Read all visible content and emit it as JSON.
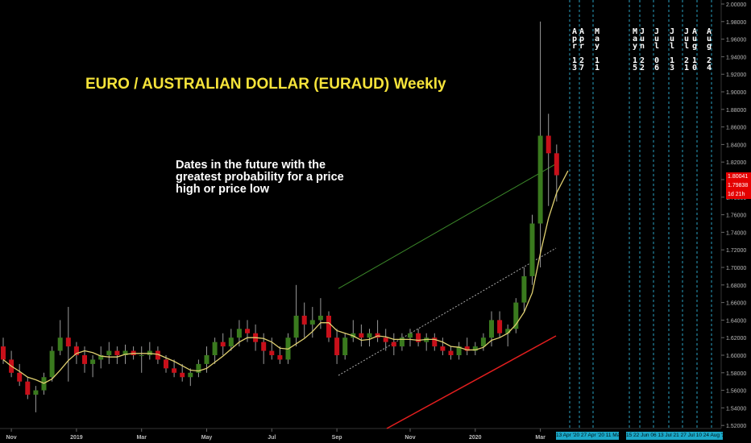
{
  "chart_data": {
    "type": "candlestick",
    "title": "EURO / AUSTRALIAN DOLLAR (EURAUD) Weekly",
    "ylim": [
      1.51,
      2.0
    ],
    "y_ticks": [
      "1.52000",
      "1.54000",
      "1.56000",
      "1.58000",
      "1.60000",
      "1.62000",
      "1.64000",
      "1.66000",
      "1.68000",
      "1.70000",
      "1.72000",
      "1.74000",
      "1.76000",
      "1.78000",
      "1.80000",
      "1.82000",
      "1.84000",
      "1.86000",
      "1.88000",
      "1.90000",
      "1.92000",
      "1.94000",
      "1.96000",
      "1.98000",
      "2.00000"
    ],
    "x_ticks": [
      {
        "label": "Nov",
        "week": 1
      },
      {
        "label": "2019",
        "week": 9
      },
      {
        "label": "Mar",
        "week": 17
      },
      {
        "label": "May",
        "week": 25
      },
      {
        "label": "Jul",
        "week": 33
      },
      {
        "label": "Sep",
        "week": 41
      },
      {
        "label": "Nov",
        "week": 50
      },
      {
        "label": "2020",
        "week": 58
      },
      {
        "label": "Mar",
        "week": 66
      }
    ],
    "candles": [
      [
        1.61,
        1.62,
        1.59,
        1.595
      ],
      [
        1.595,
        1.605,
        1.575,
        1.58
      ],
      [
        1.58,
        1.59,
        1.565,
        1.57
      ],
      [
        1.57,
        1.575,
        1.55,
        1.555
      ],
      [
        1.555,
        1.565,
        1.535,
        1.56
      ],
      [
        1.56,
        1.58,
        1.555,
        1.575
      ],
      [
        1.575,
        1.61,
        1.57,
        1.605
      ],
      [
        1.605,
        1.64,
        1.6,
        1.62
      ],
      [
        1.62,
        1.655,
        1.57,
        1.61
      ],
      [
        1.61,
        1.615,
        1.59,
        1.6
      ],
      [
        1.6,
        1.61,
        1.58,
        1.59
      ],
      [
        1.59,
        1.6,
        1.575,
        1.595
      ],
      [
        1.595,
        1.61,
        1.585,
        1.6
      ],
      [
        1.6,
        1.615,
        1.59,
        1.605
      ],
      [
        1.605,
        1.61,
        1.59,
        1.6
      ],
      [
        1.6,
        1.612,
        1.59,
        1.605
      ],
      [
        1.605,
        1.61,
        1.595,
        1.6
      ],
      [
        1.6,
        1.61,
        1.58,
        1.6
      ],
      [
        1.6,
        1.615,
        1.595,
        1.605
      ],
      [
        1.605,
        1.61,
        1.59,
        1.595
      ],
      [
        1.595,
        1.6,
        1.58,
        1.585
      ],
      [
        1.585,
        1.595,
        1.575,
        1.58
      ],
      [
        1.58,
        1.59,
        1.57,
        1.575
      ],
      [
        1.575,
        1.585,
        1.565,
        1.58
      ],
      [
        1.58,
        1.595,
        1.575,
        1.59
      ],
      [
        1.59,
        1.61,
        1.58,
        1.6
      ],
      [
        1.6,
        1.62,
        1.59,
        1.615
      ],
      [
        1.615,
        1.625,
        1.6,
        1.61
      ],
      [
        1.61,
        1.63,
        1.605,
        1.62
      ],
      [
        1.62,
        1.64,
        1.61,
        1.63
      ],
      [
        1.63,
        1.64,
        1.615,
        1.625
      ],
      [
        1.625,
        1.635,
        1.605,
        1.615
      ],
      [
        1.615,
        1.625,
        1.59,
        1.605
      ],
      [
        1.605,
        1.62,
        1.595,
        1.6
      ],
      [
        1.6,
        1.61,
        1.59,
        1.595
      ],
      [
        1.595,
        1.625,
        1.59,
        1.62
      ],
      [
        1.62,
        1.68,
        1.61,
        1.645
      ],
      [
        1.645,
        1.66,
        1.62,
        1.635
      ],
      [
        1.635,
        1.655,
        1.62,
        1.64
      ],
      [
        1.64,
        1.665,
        1.63,
        1.645
      ],
      [
        1.645,
        1.65,
        1.615,
        1.62
      ],
      [
        1.62,
        1.63,
        1.59,
        1.6
      ],
      [
        1.6,
        1.625,
        1.595,
        1.62
      ],
      [
        1.62,
        1.64,
        1.615,
        1.625
      ],
      [
        1.625,
        1.635,
        1.61,
        1.62
      ],
      [
        1.62,
        1.63,
        1.61,
        1.625
      ],
      [
        1.625,
        1.64,
        1.615,
        1.62
      ],
      [
        1.62,
        1.63,
        1.605,
        1.615
      ],
      [
        1.615,
        1.625,
        1.6,
        1.61
      ],
      [
        1.61,
        1.625,
        1.605,
        1.62
      ],
      [
        1.62,
        1.63,
        1.61,
        1.625
      ],
      [
        1.625,
        1.63,
        1.61,
        1.615
      ],
      [
        1.615,
        1.625,
        1.605,
        1.62
      ],
      [
        1.62,
        1.625,
        1.605,
        1.61
      ],
      [
        1.61,
        1.62,
        1.6,
        1.605
      ],
      [
        1.605,
        1.61,
        1.595,
        1.6
      ],
      [
        1.6,
        1.615,
        1.595,
        1.61
      ],
      [
        1.61,
        1.62,
        1.6,
        1.605
      ],
      [
        1.605,
        1.615,
        1.6,
        1.61
      ],
      [
        1.61,
        1.625,
        1.605,
        1.62
      ],
      [
        1.62,
        1.65,
        1.61,
        1.64
      ],
      [
        1.64,
        1.65,
        1.62,
        1.625
      ],
      [
        1.625,
        1.635,
        1.61,
        1.63
      ],
      [
        1.63,
        1.665,
        1.625,
        1.66
      ],
      [
        1.66,
        1.7,
        1.65,
        1.69
      ],
      [
        1.69,
        1.76,
        1.68,
        1.75
      ],
      [
        1.75,
        1.98,
        1.7,
        1.85
      ],
      [
        1.85,
        1.875,
        1.77,
        1.83
      ],
      [
        1.83,
        1.84,
        1.775,
        1.805
      ]
    ],
    "ma_line": "weekly moving average (yellow)",
    "current_prices": [
      "1.80041",
      "1.79838"
    ],
    "countdown": "1d 21h"
  },
  "note": "Dates in the future with the greatest probability for a price high or price low",
  "future_months": [
    {
      "label": "A\np\nr\n\n1\n3"
    },
    {
      "label": "A\np\nr\n\n2\n7"
    },
    {
      "label": "M\na\ny\n\n1\n1"
    },
    {
      "label": "M\na\ny\n\n1\n5"
    },
    {
      "label": "J\nu\nn\n\n2\n2"
    },
    {
      "label": "J\nu\nl\n\n0\n6"
    },
    {
      "label": "J\nu\nl\n\n1\n3"
    },
    {
      "label": "J\nu\nl\n\n2\n1"
    },
    {
      "label": "A\nu\ng\n\n1\n0"
    },
    {
      "label": "A\nu\ng\n\n2\n4"
    }
  ],
  "date_strips": [
    "13 Apr '20  27 Apr '20  11 May '20",
    "15  22 Jun  06  13 Jul  21  27 Jul  10  24 Aug '20"
  ],
  "colors": {
    "bull": "#3a7a1e",
    "bear": "#c8101a",
    "ma": "#e0d070",
    "channel_top": "#3c8a2a",
    "channel_bot": "#e21e1e",
    "dashed": "#2aa0c0"
  }
}
